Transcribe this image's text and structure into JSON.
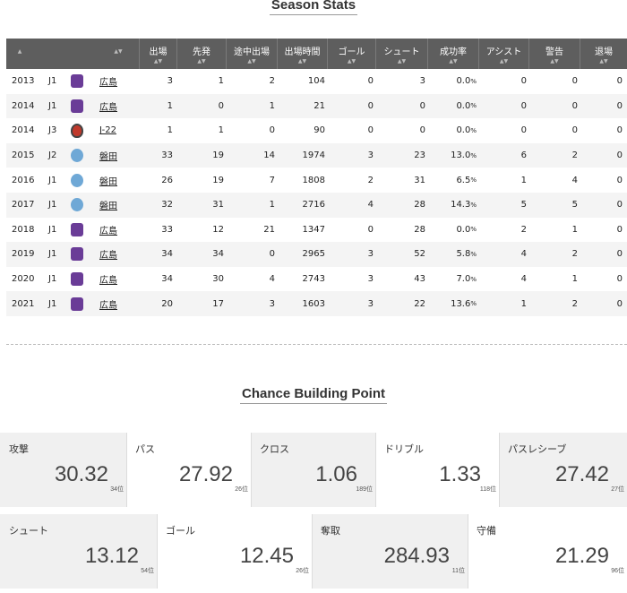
{
  "season_title": "Season Stats",
  "table": {
    "headers": [
      "出場",
      "先発",
      "途中出場",
      "出場時間",
      "ゴール",
      "シュート",
      "成功率",
      "アシスト",
      "警告",
      "退場"
    ],
    "rows": [
      {
        "year": "2013",
        "league": "J1",
        "club": "広島",
        "emblem": "sanfrecce",
        "apps": "3",
        "starts": "1",
        "sub": "2",
        "mins": "104",
        "goals": "0",
        "shots": "3",
        "rate": "0.0",
        "assists": "0",
        "yellow": "0",
        "red": "0"
      },
      {
        "year": "2014",
        "league": "J1",
        "club": "広島",
        "emblem": "sanfrecce",
        "apps": "1",
        "starts": "0",
        "sub": "1",
        "mins": "21",
        "goals": "0",
        "shots": "0",
        "rate": "0.0",
        "assists": "0",
        "yellow": "0",
        "red": "0"
      },
      {
        "year": "2014",
        "league": "J3",
        "club": "J-22",
        "emblem": "j22",
        "apps": "1",
        "starts": "1",
        "sub": "0",
        "mins": "90",
        "goals": "0",
        "shots": "0",
        "rate": "0.0",
        "assists": "0",
        "yellow": "0",
        "red": "0"
      },
      {
        "year": "2015",
        "league": "J2",
        "club": "磐田",
        "emblem": "jubilo",
        "apps": "33",
        "starts": "19",
        "sub": "14",
        "mins": "1974",
        "goals": "3",
        "shots": "23",
        "rate": "13.0",
        "assists": "6",
        "yellow": "2",
        "red": "0"
      },
      {
        "year": "2016",
        "league": "J1",
        "club": "磐田",
        "emblem": "jubilo",
        "apps": "26",
        "starts": "19",
        "sub": "7",
        "mins": "1808",
        "goals": "2",
        "shots": "31",
        "rate": "6.5",
        "assists": "1",
        "yellow": "4",
        "red": "0"
      },
      {
        "year": "2017",
        "league": "J1",
        "club": "磐田",
        "emblem": "jubilo",
        "apps": "32",
        "starts": "31",
        "sub": "1",
        "mins": "2716",
        "goals": "4",
        "shots": "28",
        "rate": "14.3",
        "assists": "5",
        "yellow": "5",
        "red": "0"
      },
      {
        "year": "2018",
        "league": "J1",
        "club": "広島",
        "emblem": "sanfrecce",
        "apps": "33",
        "starts": "12",
        "sub": "21",
        "mins": "1347",
        "goals": "0",
        "shots": "28",
        "rate": "0.0",
        "assists": "2",
        "yellow": "1",
        "red": "0"
      },
      {
        "year": "2019",
        "league": "J1",
        "club": "広島",
        "emblem": "sanfrecce",
        "apps": "34",
        "starts": "34",
        "sub": "0",
        "mins": "2965",
        "goals": "3",
        "shots": "52",
        "rate": "5.8",
        "assists": "4",
        "yellow": "2",
        "red": "0"
      },
      {
        "year": "2020",
        "league": "J1",
        "club": "広島",
        "emblem": "sanfrecce",
        "apps": "34",
        "starts": "30",
        "sub": "4",
        "mins": "2743",
        "goals": "3",
        "shots": "43",
        "rate": "7.0",
        "assists": "4",
        "yellow": "1",
        "red": "0"
      },
      {
        "year": "2021",
        "league": "J1",
        "club": "広島",
        "emblem": "sanfrecce",
        "apps": "20",
        "starts": "17",
        "sub": "3",
        "mins": "1603",
        "goals": "3",
        "shots": "22",
        "rate": "13.6",
        "assists": "1",
        "yellow": "2",
        "red": "0"
      }
    ],
    "pct_unit": "%"
  },
  "cbp_title": "Chance Building Point",
  "cbp_row1": [
    {
      "label": "攻撃",
      "value": "30.32",
      "rank": "34位"
    },
    {
      "label": "パス",
      "value": "27.92",
      "rank": "26位"
    },
    {
      "label": "クロス",
      "value": "1.06",
      "rank": "189位"
    },
    {
      "label": "ドリブル",
      "value": "1.33",
      "rank": "118位"
    },
    {
      "label": "パスレシーブ",
      "value": "27.42",
      "rank": "27位"
    }
  ],
  "cbp_row2": [
    {
      "label": "シュート",
      "value": "13.12",
      "rank": "54位"
    },
    {
      "label": "ゴール",
      "value": "12.45",
      "rank": "26位"
    },
    {
      "label": "奪取",
      "value": "284.93",
      "rank": "11位"
    },
    {
      "label": "守備",
      "value": "21.29",
      "rank": "96位"
    }
  ],
  "colors": {
    "header_bg": "#5e5e5e",
    "sanfrecce": "#6a3c97",
    "jubilo": "#6fa8d6",
    "j22": "#c0392b"
  }
}
